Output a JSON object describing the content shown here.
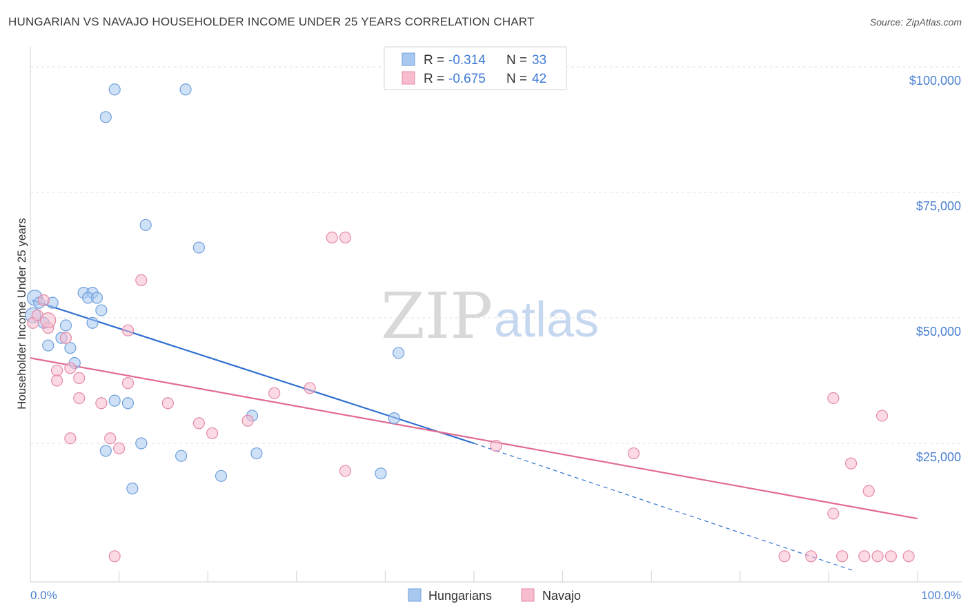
{
  "title": "HUNGARIAN VS NAVAJO HOUSEHOLDER INCOME UNDER 25 YEARS CORRELATION CHART",
  "source": "Source: ZipAtlas.com",
  "watermark": {
    "part1": "ZIP",
    "part2": "atlas"
  },
  "legend": {
    "items": [
      {
        "r_label": "R =",
        "r_value": "-0.314",
        "n_label": "N =",
        "n_value": "33",
        "color": "#a8c8f0",
        "stroke": "#6f9fdc"
      },
      {
        "r_label": "R =",
        "r_value": "-0.675",
        "n_label": "N =",
        "n_value": "42",
        "color": "#f7bccd",
        "stroke": "#e48aa8"
      }
    ]
  },
  "bottom_legend": [
    "Hungarians",
    "Navajo"
  ],
  "chart_data": {
    "type": "scatter",
    "title": "HUNGARIAN VS NAVAJO HOUSEHOLDER INCOME UNDER 25 YEARS CORRELATION CHART",
    "xlabel": "",
    "ylabel": "Householder Income Under 25 years",
    "xlim": [
      0,
      100
    ],
    "ylim": [
      0,
      100000
    ],
    "x_tick_labels": [
      "0.0%",
      "100.0%"
    ],
    "y_ticks": [
      25000,
      50000,
      75000,
      100000
    ],
    "y_tick_labels": [
      "$25,000",
      "$50,000",
      "$75,000",
      "$100,000"
    ],
    "grid": true,
    "series": [
      {
        "name": "Hungarians",
        "color": "#a8c8f0",
        "stroke": "#6f9fdc",
        "line_color": "#2f6fd0",
        "trend": {
          "x0": 0.2,
          "y0": 53500,
          "x1": 50,
          "y1": 25000,
          "dash_to_x": 93,
          "dash_to_y": -500
        },
        "points": [
          [
            0.5,
            54000
          ],
          [
            1.0,
            53000
          ],
          [
            2.5,
            53000
          ],
          [
            1.5,
            49000
          ],
          [
            4.0,
            48500
          ],
          [
            2.0,
            44500
          ],
          [
            4.5,
            44000
          ],
          [
            3.5,
            46000
          ],
          [
            6.0,
            55000
          ],
          [
            7.0,
            55000
          ],
          [
            6.5,
            54000
          ],
          [
            7.5,
            54000
          ],
          [
            8.0,
            51500
          ],
          [
            7.0,
            49000
          ],
          [
            5.0,
            41000
          ],
          [
            9.5,
            95500
          ],
          [
            17.5,
            95500
          ],
          [
            8.5,
            90000
          ],
          [
            13.0,
            68500
          ],
          [
            19.0,
            64000
          ],
          [
            9.5,
            33500
          ],
          [
            11.0,
            33000
          ],
          [
            8.5,
            23500
          ],
          [
            12.5,
            25000
          ],
          [
            17.0,
            22500
          ],
          [
            11.5,
            16000
          ],
          [
            21.5,
            18500
          ],
          [
            25.0,
            30500
          ],
          [
            25.5,
            23000
          ],
          [
            39.5,
            19000
          ],
          [
            41.5,
            43000
          ],
          [
            41.0,
            30000
          ],
          [
            0.3,
            50500
          ]
        ]
      },
      {
        "name": "Navajo",
        "color": "#f7bccd",
        "stroke": "#e48aa8",
        "line_color": "#e26a92",
        "trend": {
          "x0": 0,
          "y0": 42000,
          "x1": 100,
          "y1": 10000
        },
        "points": [
          [
            0.3,
            49000
          ],
          [
            0.8,
            50500
          ],
          [
            1.5,
            53500
          ],
          [
            2.0,
            48000
          ],
          [
            4.0,
            46000
          ],
          [
            3.0,
            39500
          ],
          [
            4.5,
            40000
          ],
          [
            3.0,
            37500
          ],
          [
            5.5,
            38000
          ],
          [
            5.5,
            34000
          ],
          [
            8.0,
            33000
          ],
          [
            11.0,
            47500
          ],
          [
            12.5,
            57500
          ],
          [
            11.0,
            37000
          ],
          [
            9.0,
            26000
          ],
          [
            10.0,
            24000
          ],
          [
            4.5,
            26000
          ],
          [
            15.5,
            33000
          ],
          [
            19.0,
            29000
          ],
          [
            20.5,
            27000
          ],
          [
            24.5,
            29500
          ],
          [
            27.5,
            35000
          ],
          [
            31.5,
            36000
          ],
          [
            34.0,
            66000
          ],
          [
            35.5,
            66000
          ],
          [
            35.5,
            19500
          ],
          [
            52.5,
            24500
          ],
          [
            68.0,
            23000
          ],
          [
            90.5,
            34000
          ],
          [
            90.5,
            11000
          ],
          [
            96.0,
            30500
          ],
          [
            92.5,
            21000
          ],
          [
            94.5,
            15500
          ],
          [
            9.5,
            2500
          ],
          [
            85.0,
            2500
          ],
          [
            88.0,
            2500
          ],
          [
            91.5,
            2500
          ],
          [
            94.0,
            2500
          ],
          [
            95.5,
            2500
          ],
          [
            97.0,
            2500
          ],
          [
            99.0,
            2500
          ],
          [
            2.0,
            49500
          ]
        ]
      }
    ]
  }
}
